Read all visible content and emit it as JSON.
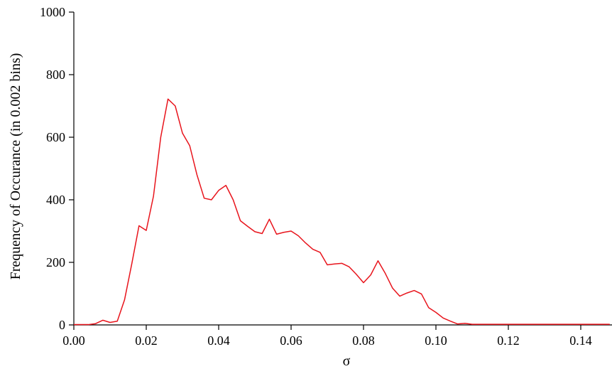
{
  "chart_data": {
    "type": "line",
    "title": "",
    "xlabel": "σ",
    "ylabel": "Frequency of Occurance (in 0.002 bins)",
    "xlim": [
      0.0,
      0.148
    ],
    "ylim": [
      0,
      1000
    ],
    "x_ticks": [
      0.0,
      0.02,
      0.04,
      0.06,
      0.08,
      0.1,
      0.12,
      0.14
    ],
    "x_tick_labels": [
      "0.00",
      "0.02",
      "0.04",
      "0.06",
      "0.08",
      "0.10",
      "0.12",
      "0.14"
    ],
    "y_ticks": [
      0,
      200,
      400,
      600,
      800,
      1000
    ],
    "y_tick_labels": [
      "0",
      "200",
      "400",
      "600",
      "800",
      "1000"
    ],
    "grid": false,
    "line_color": "#e8141c",
    "series": [
      {
        "x": [
          0.0,
          0.002,
          0.004,
          0.006,
          0.008,
          0.01,
          0.012,
          0.014,
          0.016,
          0.018,
          0.02,
          0.022,
          0.024,
          0.026,
          0.028,
          0.03,
          0.032,
          0.034,
          0.036,
          0.038,
          0.04,
          0.042,
          0.044,
          0.046,
          0.048,
          0.05,
          0.052,
          0.054,
          0.056,
          0.058,
          0.06,
          0.062,
          0.064,
          0.066,
          0.068,
          0.07,
          0.072,
          0.074,
          0.076,
          0.078,
          0.08,
          0.082,
          0.084,
          0.086,
          0.088,
          0.09,
          0.092,
          0.094,
          0.096,
          0.098,
          0.1,
          0.102,
          0.104,
          0.106,
          0.108,
          0.11,
          0.112,
          0.114,
          0.116,
          0.118,
          0.12,
          0.122,
          0.124,
          0.126,
          0.128,
          0.13,
          0.132,
          0.134,
          0.136,
          0.138,
          0.14,
          0.142,
          0.144,
          0.146,
          0.148
        ],
        "y": [
          1,
          1,
          1,
          4,
          15,
          8,
          12,
          80,
          195,
          317,
          302,
          412,
          600,
          722,
          700,
          613,
          573,
          480,
          405,
          400,
          430,
          446,
          400,
          333,
          315,
          298,
          292,
          338,
          290,
          296,
          300,
          285,
          262,
          242,
          232,
          192,
          195,
          197,
          186,
          162,
          135,
          160,
          205,
          165,
          118,
          92,
          102,
          110,
          99,
          55,
          40,
          22,
          12,
          3,
          5,
          2,
          2,
          2,
          2,
          2,
          2,
          2,
          2,
          2,
          2,
          2,
          2,
          2,
          2,
          2,
          2,
          2,
          2,
          2,
          2
        ]
      }
    ]
  }
}
